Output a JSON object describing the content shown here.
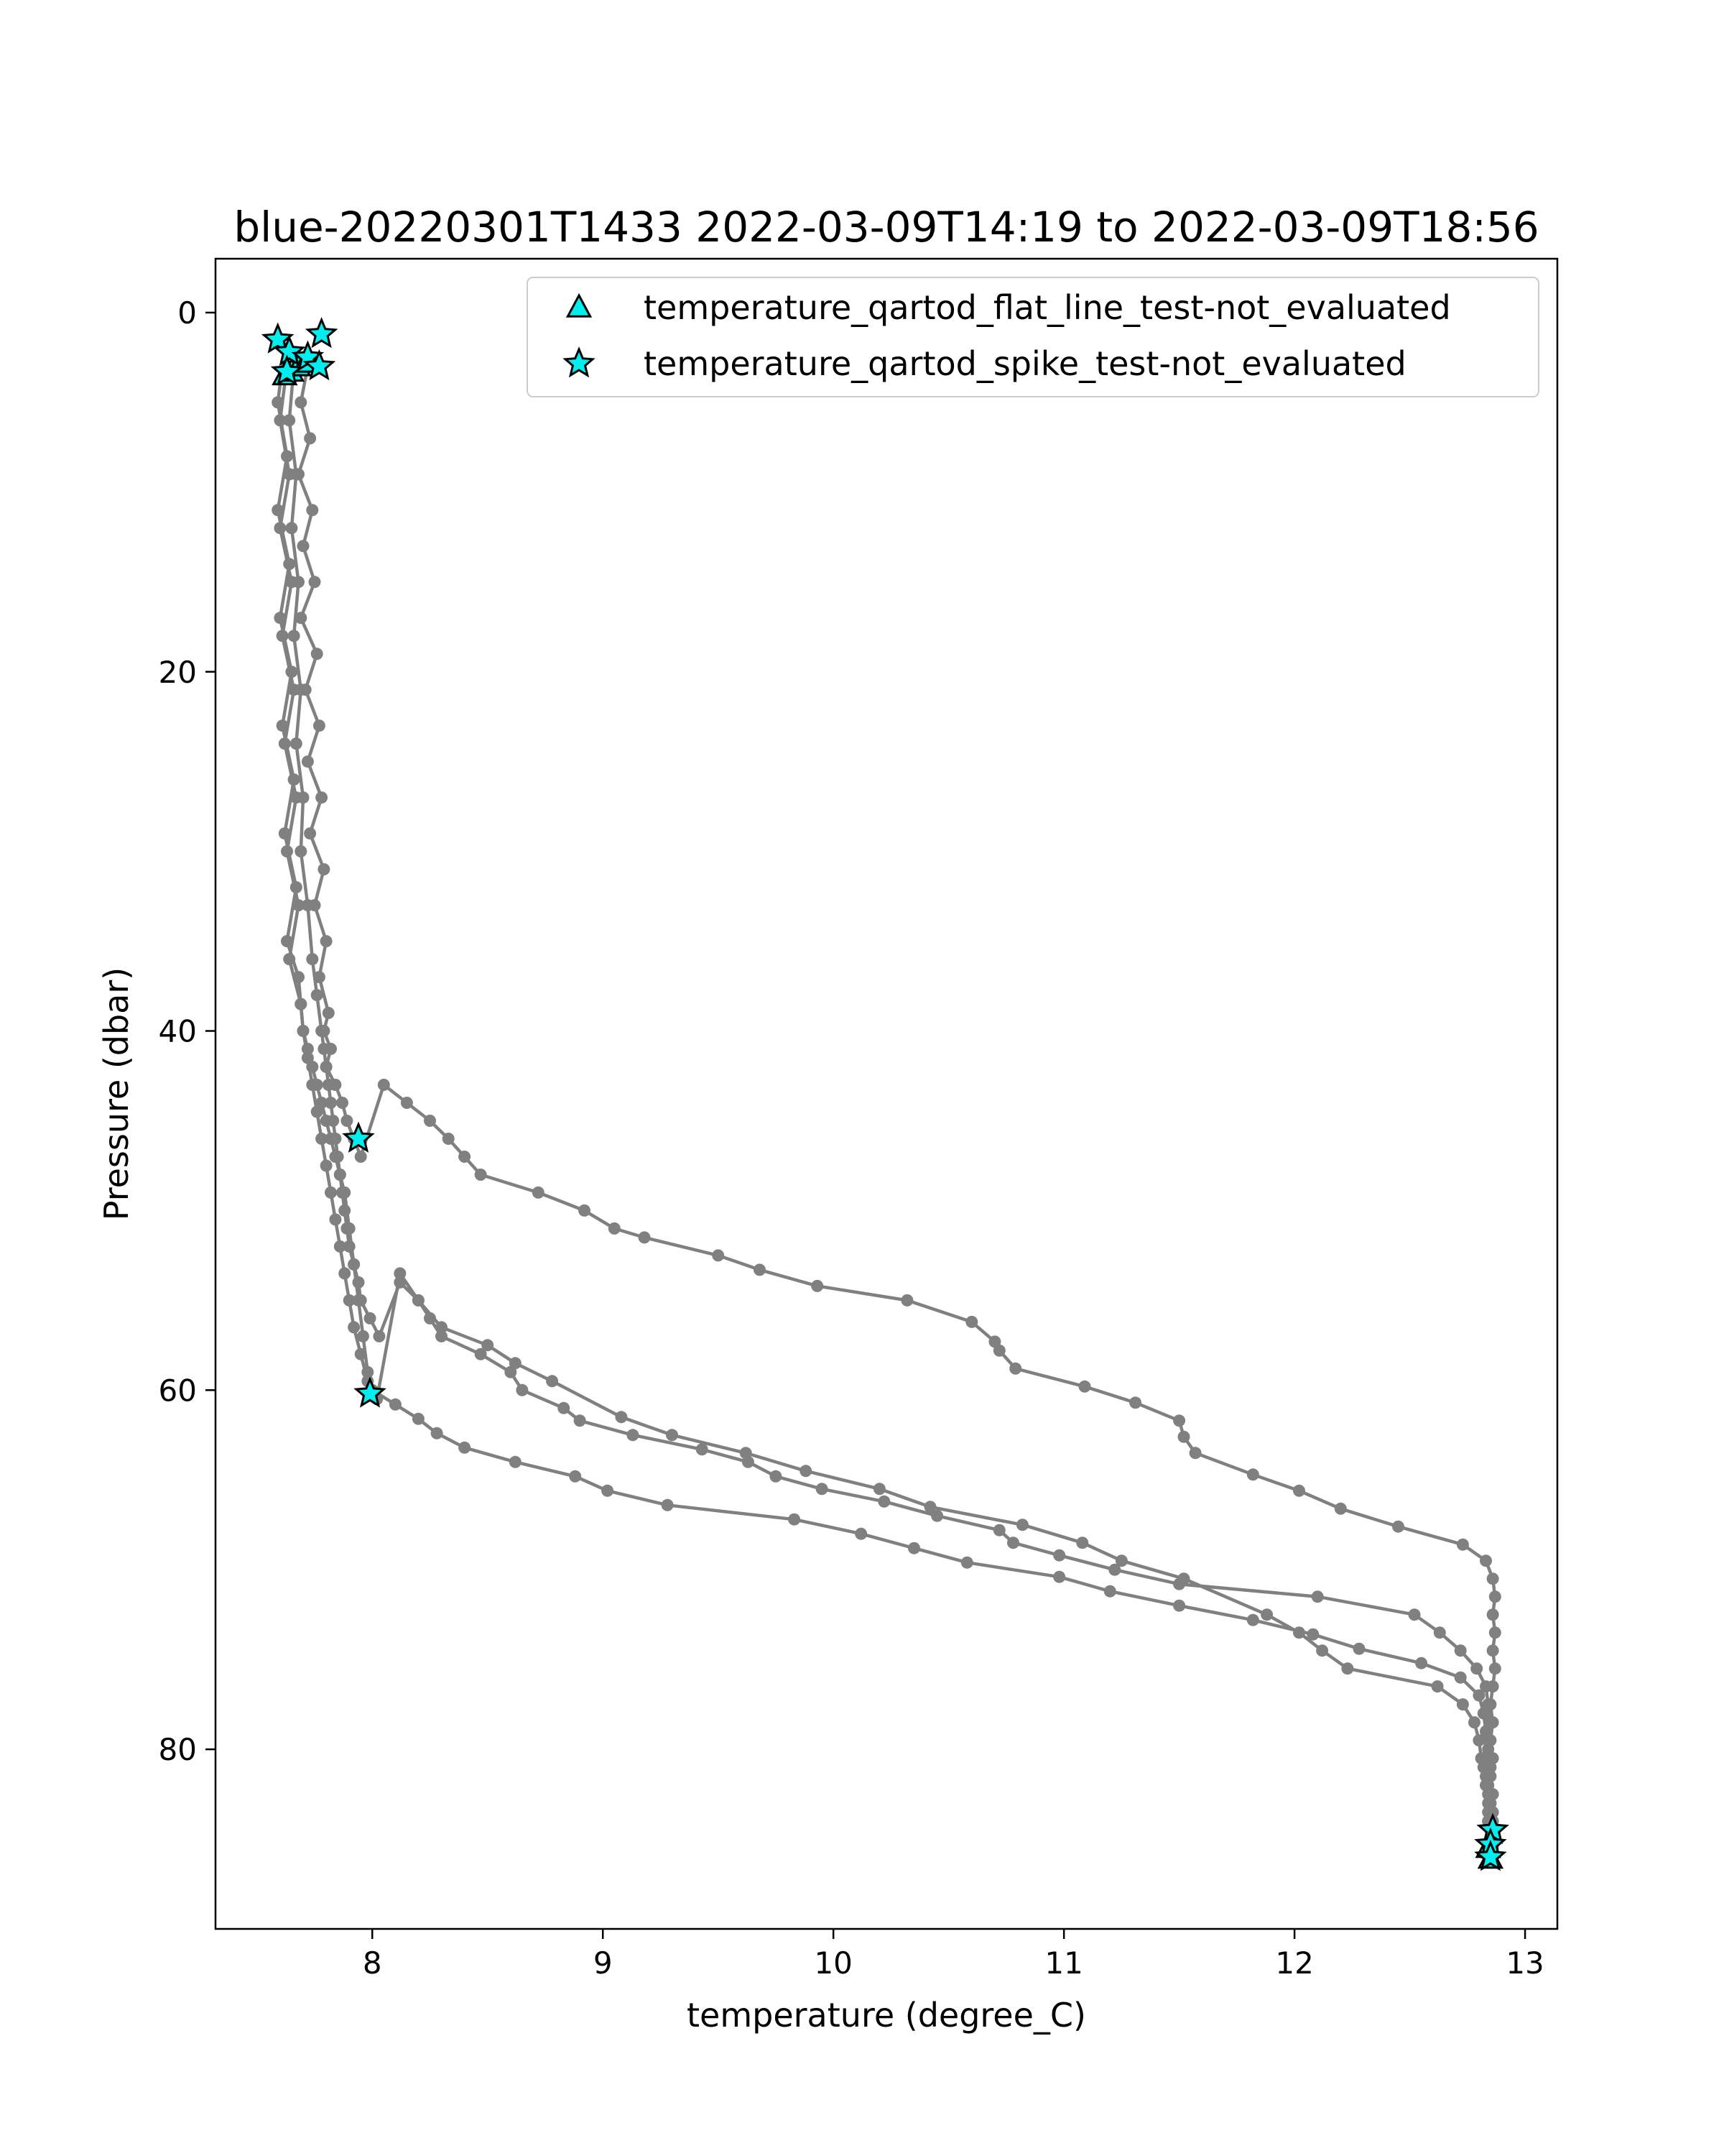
{
  "chart_data": {
    "type": "scatter",
    "title": "blue-20220301T1433 2022-03-09T14:19 to 2022-03-09T18:56",
    "xlabel": "temperature (degree_C)",
    "ylabel": "Pressure (dbar)",
    "xlim": [
      7.32,
      13.14
    ],
    "ylim": [
      90,
      -3
    ],
    "y_inverted": true,
    "grid": false,
    "legend_position": "top-right",
    "xticks": [
      8,
      9,
      10,
      11,
      12,
      13
    ],
    "yticks": [
      0,
      20,
      40,
      60,
      80
    ],
    "colors": {
      "profile": "#808080",
      "marker_fill": "#00eeee",
      "marker_edge": "#000000"
    },
    "profiles": [
      {
        "x": [
          7.72,
          7.69,
          7.73,
          7.68,
          7.74,
          7.7,
          7.75,
          7.69,
          7.76,
          7.71,
          7.77,
          7.72,
          7.78,
          7.73,
          7.79,
          7.75,
          7.8,
          7.77,
          7.81,
          7.79,
          7.82,
          7.8,
          7.84,
          7.87,
          7.89,
          7.92,
          7.95,
          8.05,
          8.15,
          8.25,
          8.33,
          8.4,
          8.47,
          8.72,
          8.92,
          9.05,
          9.18,
          9.5,
          9.68,
          9.93,
          10.32,
          10.6,
          10.7,
          10.72,
          10.79,
          11.09,
          11.31,
          11.5,
          11.52,
          11.57,
          11.82,
          12.02,
          12.2,
          12.45,
          12.73,
          12.83,
          12.86,
          12.87,
          12.86,
          12.87,
          12.86,
          12.87,
          12.86,
          12.85,
          12.86,
          12.85,
          12.86,
          12.85,
          12.86,
          12.85,
          12.86,
          12.86,
          12.87,
          12.86,
          12.86
        ],
        "y": [
          3,
          5,
          7,
          9,
          11,
          13,
          15,
          17,
          19,
          21,
          23,
          25,
          27,
          29,
          31,
          33,
          35,
          37,
          39,
          40,
          41,
          42,
          43,
          44,
          45,
          46,
          47,
          43,
          44,
          45,
          46,
          47,
          48,
          49,
          50,
          51,
          51.5,
          52.5,
          53.3,
          54.2,
          55,
          56.2,
          57.3,
          57.8,
          58.8,
          59.8,
          60.7,
          61.7,
          62.6,
          63.5,
          64.7,
          65.6,
          66.6,
          67.6,
          68.6,
          69.5,
          70.5,
          71.5,
          72.5,
          73.5,
          74.5,
          75.5,
          76.5,
          77.5,
          78.5,
          79.5,
          80.5,
          81.5,
          82.5,
          83,
          83.5,
          84,
          84.5,
          85,
          85.5
        ]
      },
      {
        "x": [
          7.66,
          7.64,
          7.67,
          7.65,
          7.68,
          7.66,
          7.69,
          7.67,
          7.7,
          7.69,
          7.72,
          7.74,
          7.76,
          7.78,
          7.79,
          7.8,
          7.81,
          7.82,
          7.83,
          7.84,
          7.85,
          7.86,
          7.87,
          7.88,
          7.89,
          7.9,
          7.92,
          7.94,
          7.95,
          7.99,
          8.03,
          8.12,
          8.2,
          8.25,
          8.3,
          8.47,
          8.6,
          8.65,
          8.83,
          8.9,
          9.13,
          9.43,
          9.63,
          9.75,
          9.95,
          10.22,
          10.45,
          10.72,
          10.78,
          10.98,
          11.22,
          11.5,
          12.1,
          12.52,
          12.63,
          12.72,
          12.79,
          12.83,
          12.84,
          12.85,
          12.84,
          12.85,
          12.84,
          12.85,
          12.84,
          12.85
        ],
        "y": [
          3,
          6,
          9,
          12,
          15,
          18,
          21,
          24,
          27,
          30,
          33,
          36,
          38,
          40,
          41,
          42,
          43,
          44,
          45,
          46,
          47,
          48,
          49,
          50,
          51,
          52,
          53,
          54,
          55,
          56,
          57,
          54,
          55,
          56,
          57,
          58,
          59,
          60,
          61,
          61.7,
          62.5,
          63.3,
          64,
          64.8,
          65.5,
          66.2,
          67,
          67.8,
          68.5,
          69.2,
          70,
          70.8,
          71.5,
          72.5,
          73.5,
          74.5,
          75.5,
          76.5,
          77.5,
          78.5,
          79.5,
          80.5,
          81.5,
          82.5,
          83.5,
          84.5
        ]
      },
      {
        "x": [
          7.63,
          7.6,
          7.64,
          7.6,
          7.65,
          7.61,
          7.66,
          7.62,
          7.67,
          7.63,
          7.68,
          7.64,
          7.69,
          7.7,
          7.72,
          7.74,
          7.76,
          7.78,
          7.8,
          7.82,
          7.84,
          7.86,
          7.88,
          7.9,
          7.92,
          7.95,
          7.98,
          8.02,
          8.12,
          8.2,
          8.3,
          8.5,
          8.62,
          8.78,
          9.08,
          9.3,
          9.62,
          9.88,
          10.2,
          10.42,
          10.82,
          11.08,
          11.25,
          11.52,
          11.88,
          12.02,
          12.12,
          12.23,
          12.62,
          12.73,
          12.78,
          12.8,
          12.81,
          12.82,
          12.83,
          12.83,
          12.84,
          12.84,
          12.85,
          12.84,
          12.85
        ],
        "y": [
          3,
          6,
          9,
          12,
          15,
          18,
          21,
          24,
          27,
          30,
          33,
          36,
          38.5,
          40,
          41.5,
          43,
          44.5,
          46,
          47.5,
          49,
          50.5,
          52,
          53.5,
          55,
          56.5,
          58,
          59.5,
          60.5,
          53.5,
          55,
          56.5,
          57.5,
          58.5,
          59.5,
          61.5,
          62.5,
          63.5,
          64.5,
          65.5,
          66.5,
          67.5,
          68.5,
          69.5,
          70.5,
          72.5,
          73.5,
          74.5,
          75.5,
          76.5,
          77.5,
          78.5,
          79.5,
          80.5,
          81,
          81.5,
          82,
          82.5,
          83,
          83.5,
          84,
          84.5
        ]
      },
      {
        "x": [
          7.62,
          7.59,
          7.63,
          7.59,
          7.64,
          7.6,
          7.65,
          7.61,
          7.66,
          7.62,
          7.67,
          7.63,
          7.68,
          7.69,
          7.7,
          7.72,
          7.74,
          7.76,
          7.78,
          7.8,
          7.82,
          7.84,
          7.86,
          7.88,
          7.9,
          7.92,
          7.94,
          7.96,
          7.98,
          8.0,
          8.1,
          8.2,
          8.28,
          8.4,
          8.62,
          8.88,
          9.02,
          9.28,
          9.83,
          10.12,
          10.35,
          10.58,
          10.98,
          11.2,
          11.5,
          11.82,
          12.08,
          12.28,
          12.55,
          12.72,
          12.8,
          12.82,
          12.83,
          12.84,
          12.85,
          12.84,
          12.85,
          12.84,
          12.85,
          12.85
        ],
        "y": [
          2,
          5,
          8,
          11,
          14,
          17,
          20,
          23,
          26,
          29,
          32,
          35,
          37,
          38.5,
          40,
          41,
          42,
          43,
          44,
          45,
          46,
          47,
          48,
          49,
          51,
          53,
          55,
          57,
          59,
          60,
          60.8,
          61.6,
          62.4,
          63.2,
          64,
          64.8,
          65.6,
          66.4,
          67.2,
          68,
          68.8,
          69.6,
          70.4,
          71.2,
          72,
          72.8,
          73.6,
          74.4,
          75.2,
          76,
          77,
          78,
          79,
          80,
          81,
          82,
          83,
          84,
          85,
          86
        ]
      }
    ],
    "series": [
      {
        "name": "temperature_qartod_flat_line_test-not_evaluated",
        "marker": "triangle",
        "x": [
          7.62,
          7.65,
          7.68,
          7.71,
          12.84,
          12.85
        ],
        "y": [
          3.5,
          3.3,
          3.0,
          2.8,
          85.5,
          86.1
        ]
      },
      {
        "name": "temperature_qartod_spike_test-not_evaluated",
        "marker": "star",
        "x": [
          7.59,
          7.64,
          7.72,
          7.78,
          7.77,
          7.63,
          7.94,
          7.99,
          12.86,
          12.85,
          12.85
        ],
        "y": [
          1.5,
          2.2,
          2.5,
          1.2,
          3.0,
          3.3,
          46.0,
          60.2,
          84.5,
          85.3,
          86.0
        ]
      }
    ]
  }
}
